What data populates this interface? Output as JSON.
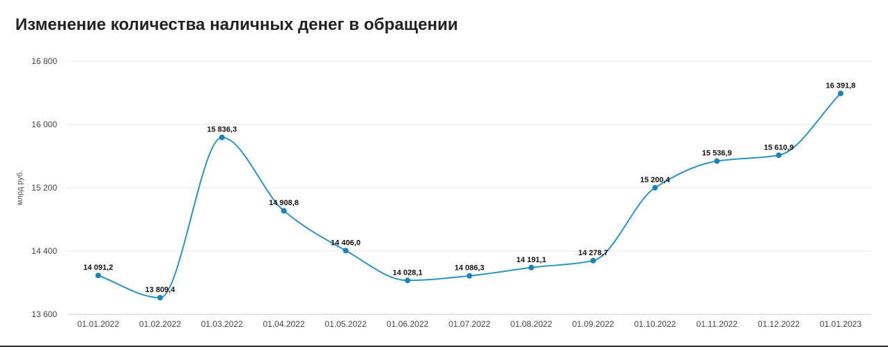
{
  "chart_data": {
    "type": "line",
    "title": "Изменение количества наличных денег в обращении",
    "ylabel": "млрд руб.",
    "xlabel": "",
    "ylim": [
      13600,
      16800
    ],
    "yticks": [
      "13 600",
      "14 400",
      "15 200",
      "16 000",
      "16 800"
    ],
    "ytick_values": [
      13600,
      14400,
      15200,
      16000,
      16800
    ],
    "categories": [
      "01.01.2022",
      "01.02.2022",
      "01.03.2022",
      "01.04.2022",
      "01.05.2022",
      "01.06.2022",
      "01.07.2022",
      "01.08.2022",
      "01.09.2022",
      "01.10.2022",
      "01.11.2022",
      "01.12.2022",
      "01.01.2023"
    ],
    "values": [
      14091.2,
      13809.4,
      15836.3,
      14908.8,
      14406.0,
      14028.1,
      14086.3,
      14191.1,
      14278.7,
      15200.4,
      15536.9,
      15610.9,
      16391.8
    ],
    "value_labels": [
      "14 091,2",
      "13 809,4",
      "15 836,3",
      "14 908,8",
      "14 406,0",
      "14 028,1",
      "14 086,3",
      "14 191,1",
      "14 278,7",
      "15 200,4",
      "15 536,9",
      "15 610,9",
      "16 391,8"
    ],
    "grid": true,
    "legend": "none",
    "line_color": "#2a93c4",
    "marker_color": "#1b82bd",
    "grid_color": "#e6e6e6"
  }
}
